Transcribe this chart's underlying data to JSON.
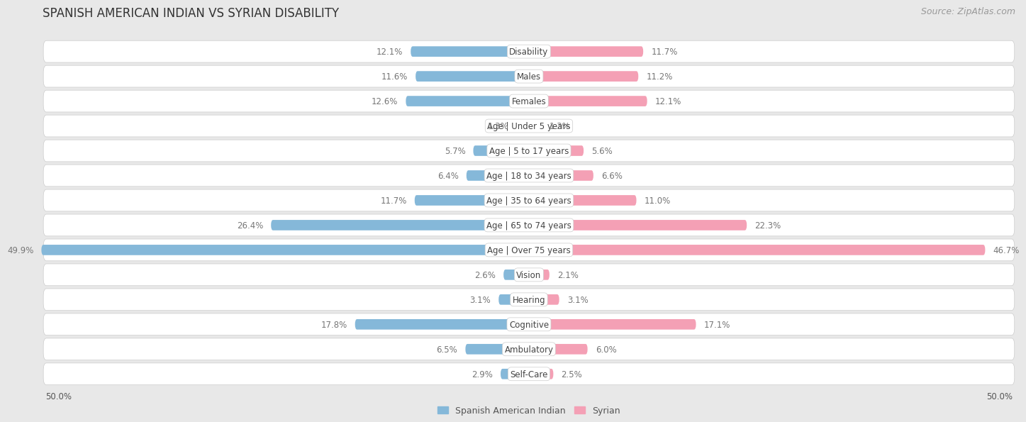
{
  "title": "SPANISH AMERICAN INDIAN VS SYRIAN DISABILITY",
  "source": "Source: ZipAtlas.com",
  "categories": [
    "Disability",
    "Males",
    "Females",
    "Age | Under 5 years",
    "Age | 5 to 17 years",
    "Age | 18 to 34 years",
    "Age | 35 to 64 years",
    "Age | 65 to 74 years",
    "Age | Over 75 years",
    "Vision",
    "Hearing",
    "Cognitive",
    "Ambulatory",
    "Self-Care"
  ],
  "left_values": [
    12.1,
    11.6,
    12.6,
    1.3,
    5.7,
    6.4,
    11.7,
    26.4,
    49.9,
    2.6,
    3.1,
    17.8,
    6.5,
    2.9
  ],
  "right_values": [
    11.7,
    11.2,
    12.1,
    1.3,
    5.6,
    6.6,
    11.0,
    22.3,
    46.7,
    2.1,
    3.1,
    17.1,
    6.0,
    2.5
  ],
  "left_color": "#85b8d9",
  "right_color": "#f4a0b5",
  "left_label": "Spanish American Indian",
  "right_label": "Syrian",
  "max_val": 50.0,
  "bg_color": "#e8e8e8",
  "row_color": "#ffffff",
  "row_border": "#cccccc",
  "title_fontsize": 12,
  "source_fontsize": 9,
  "label_fontsize": 9,
  "value_fontsize": 8.5,
  "category_fontsize": 8.5
}
